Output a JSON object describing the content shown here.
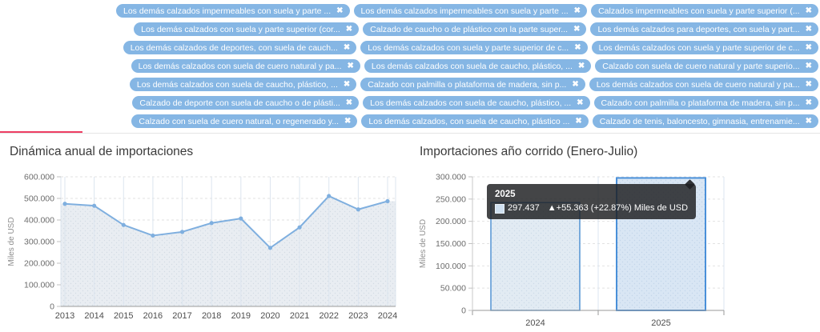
{
  "filters": {
    "close_icon": "✖",
    "rows": [
      {
        "chips": [
          {
            "label": "Los demás calzados impermeables con suela y parte ..."
          },
          {
            "label": "Los demás calzados impermeables con suela y parte ..."
          },
          {
            "label": "Calzados impermeables con suela y parte superior (..."
          }
        ]
      },
      {
        "chips": [
          {
            "label": "Los demás calzados con suela y parte superior (cor..."
          },
          {
            "label": "Calzado de caucho o de plástico con la parte super..."
          },
          {
            "label": "Los demás calzados para deportes, con suela y part..."
          }
        ]
      },
      {
        "chips": [
          {
            "label": "Los demás calzados de deportes, con suela de cauch..."
          },
          {
            "label": "Los demás calzados con suela y parte superior de c..."
          },
          {
            "label": "Los demás calzados con suela y parte superior de c..."
          }
        ]
      },
      {
        "chips": [
          {
            "label": "Los demás calzados con suela de cuero natural y pa..."
          },
          {
            "label": "Los demás calzados con suela de caucho, plástico, ..."
          },
          {
            "label": "Calzado con suela de cuero natural y parte superio..."
          }
        ]
      },
      {
        "chips": [
          {
            "label": "Los demás calzados con suela de caucho, plástico, ..."
          },
          {
            "label": "Calzado con palmilla o plataforma de madera, sin p..."
          },
          {
            "label": "Los demás calzados con suela de cuero natural y pa..."
          }
        ]
      },
      {
        "chips": [
          {
            "label": "Calzado de deporte con suela de caucho o de plásti..."
          },
          {
            "label": "Los demás calzados con suela de caucho, plástico, ..."
          },
          {
            "label": "Calzado con palmilla o plataforma de madera, sin p..."
          }
        ]
      },
      {
        "chips": [
          {
            "label": "Calzado con suela de cuero natural, o regenerado y..."
          },
          {
            "label": "Los demás calzados, con suela de caucho, plástico ..."
          },
          {
            "label": "Calzado de tenis, baloncesto, gimnasia, entrenamie..."
          }
        ]
      }
    ]
  },
  "charts": {
    "left": {
      "title": "Dinámica anual de importaciones"
    },
    "right": {
      "title": "Importaciones año corrido (Enero-Julio)"
    }
  },
  "tooltip": {
    "title": "2025",
    "value": "297.437",
    "delta": "▲+55.363 (+22.87%)",
    "unit": "Miles de USD"
  },
  "colors": {
    "chip_blue": "#85b6e4",
    "line_blue": "#7fafdf",
    "bar_border_blue": "#5393d3",
    "bar_border_highlight": "#4a90d9",
    "accent_red": "#ee3e63"
  },
  "chart_data": [
    {
      "type": "line",
      "title": "Dinámica anual de importaciones",
      "categories": [
        "2013",
        "2014",
        "2015",
        "2016",
        "2017",
        "2018",
        "2019",
        "2020",
        "2021",
        "2022",
        "2023",
        "2024"
      ],
      "values": [
        475000,
        466000,
        377000,
        328000,
        345000,
        386000,
        407000,
        271000,
        366000,
        511000,
        449000,
        487000
      ],
      "xlabel": "",
      "ylabel": "Miles de USD",
      "ylim": [
        0,
        600000
      ],
      "ytick_step": 100000,
      "area": true,
      "grid": true,
      "legend": null
    },
    {
      "type": "bar",
      "title": "Importaciones año corrido (Enero-Julio)",
      "categories": [
        "2024",
        "2025"
      ],
      "values": [
        242074,
        297437
      ],
      "xlabel": "",
      "ylabel": "Miles de USD",
      "ylim": [
        0,
        300000
      ],
      "ytick_step": 50000,
      "grid": true,
      "highlighted_category": "2025",
      "tooltip_values": {
        "year": "2025",
        "value": 297437,
        "change_abs": 55363,
        "change_pct": 22.87,
        "unit": "Miles de USD"
      }
    }
  ]
}
